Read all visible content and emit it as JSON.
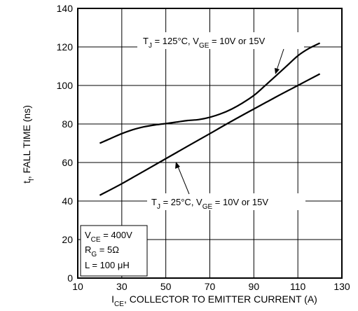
{
  "chart_data": {
    "type": "line",
    "xlabel_main": "I",
    "xlabel_sub": "CE",
    "xlabel_rest": ", COLLECTOR TO EMITTER CURRENT (A)",
    "ylabel_main": "t",
    "ylabel_sub": "f",
    "ylabel_rest": ", FALL TIME (ns)",
    "xlim": [
      10,
      130
    ],
    "ylim": [
      0,
      140
    ],
    "x_ticks": [
      "10",
      "30",
      "50",
      "70",
      "90",
      "110",
      "130"
    ],
    "y_ticks": [
      "0",
      "20",
      "40",
      "60",
      "80",
      "100",
      "120",
      "140"
    ],
    "grid": true,
    "series": [
      {
        "x": [
          20,
          25,
          30,
          35,
          40,
          45,
          50,
          55,
          60,
          65,
          70,
          75,
          80,
          85,
          90,
          95,
          100,
          105,
          110,
          115,
          120
        ],
        "y": [
          70,
          72.5,
          75,
          77,
          78.5,
          79.5,
          80.2,
          81,
          81.8,
          82.3,
          83.5,
          85.3,
          87.8,
          91,
          94.8,
          99.8,
          105,
          110.2,
          115.4,
          119.2,
          122
        ]
      },
      {
        "x": [
          20,
          30,
          40,
          50,
          60,
          70,
          80,
          90,
          100,
          110,
          120
        ],
        "y": [
          43,
          49,
          55.5,
          62,
          68.5,
          75,
          81.5,
          87.8,
          94,
          100,
          106
        ]
      }
    ],
    "annotations": {
      "upper": {
        "tj": "T",
        "tj_sub": "J",
        "tj_rest": " = 125°C, V",
        "vge_sub": "GE",
        "vge_rest": " = 10V  or 15V"
      },
      "lower": {
        "tj": "T",
        "tj_sub": "J",
        "tj_rest": " = 25°C, V",
        "vge_sub": "GE",
        "vge_rest": " = 10V  or 15V"
      }
    },
    "conditions": {
      "vce": "V",
      "vce_sub": "CE",
      "vce_rest": " = 400V",
      "rg": "R",
      "rg_sub": "G",
      "rg_rest": " = 5Ω",
      "l": "L = 100 μH"
    }
  }
}
